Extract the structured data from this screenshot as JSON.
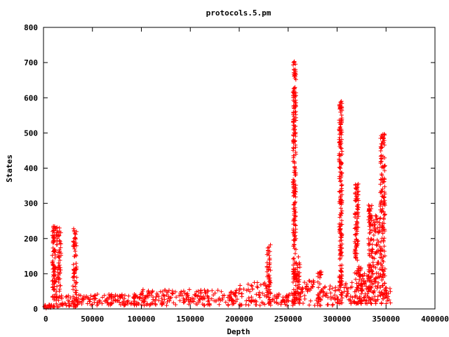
{
  "chart_data": {
    "type": "scatter",
    "title": "protocols.5.pm",
    "xlabel": "Depth",
    "ylabel": "States",
    "xlim": [
      0,
      400000
    ],
    "ylim": [
      0,
      800
    ],
    "xticks": [
      "0",
      "50000",
      "100000",
      "150000",
      "200000",
      "250000",
      "300000",
      "350000",
      "400000"
    ],
    "yticks": [
      "0",
      "100",
      "200",
      "300",
      "400",
      "500",
      "600",
      "700",
      "800"
    ],
    "grid": false,
    "legend": "none",
    "marker": "+",
    "color": "#ff0000",
    "point_groups": [
      {
        "x_range": [
          0,
          9000
        ],
        "y_range": [
          2,
          12
        ]
      },
      {
        "x_range": [
          9000,
          12000
        ],
        "y_range": [
          5,
          235
        ]
      },
      {
        "x_range": [
          12000,
          18000
        ],
        "y_range": [
          5,
          232
        ]
      },
      {
        "x_range": [
          18000,
          30000
        ],
        "y_range": [
          8,
          38
        ]
      },
      {
        "x_range": [
          30000,
          34000
        ],
        "y_range": [
          5,
          228
        ]
      },
      {
        "x_range": [
          34000,
          100000
        ],
        "y_range": [
          10,
          42
        ]
      },
      {
        "x_range": [
          100000,
          104000
        ],
        "y_range": [
          10,
          55
        ]
      },
      {
        "x_range": [
          104000,
          200000
        ],
        "y_range": [
          10,
          55
        ]
      },
      {
        "x_range": [
          200000,
          215000
        ],
        "y_range": [
          10,
          70
        ]
      },
      {
        "x_range": [
          215000,
          228000
        ],
        "y_range": [
          10,
          75
        ]
      },
      {
        "x_range": [
          228000,
          232000
        ],
        "y_range": [
          15,
          182
        ]
      },
      {
        "x_range": [
          232000,
          255000
        ],
        "y_range": [
          10,
          45
        ]
      },
      {
        "x_range": [
          255000,
          258000
        ],
        "y_range": [
          15,
          703
        ]
      },
      {
        "x_range": [
          258000,
          262000
        ],
        "y_range": [
          15,
          148
        ]
      },
      {
        "x_range": [
          262000,
          280000
        ],
        "y_range": [
          10,
          80
        ]
      },
      {
        "x_range": [
          280000,
          284000
        ],
        "y_range": [
          10,
          105
        ]
      },
      {
        "x_range": [
          284000,
          302000
        ],
        "y_range": [
          10,
          65
        ]
      },
      {
        "x_range": [
          302000,
          305000
        ],
        "y_range": [
          15,
          590
        ]
      },
      {
        "x_range": [
          305000,
          318000
        ],
        "y_range": [
          15,
          75
        ]
      },
      {
        "x_range": [
          318000,
          322000
        ],
        "y_range": [
          15,
          355
        ]
      },
      {
        "x_range": [
          322000,
          326000
        ],
        "y_range": [
          15,
          120
        ]
      },
      {
        "x_range": [
          326000,
          332000
        ],
        "y_range": [
          15,
          100
        ]
      },
      {
        "x_range": [
          332000,
          336000
        ],
        "y_range": [
          15,
          295
        ]
      },
      {
        "x_range": [
          336000,
          344000
        ],
        "y_range": [
          15,
          265
        ]
      },
      {
        "x_range": [
          344000,
          349000
        ],
        "y_range": [
          15,
          497
        ]
      },
      {
        "x_range": [
          349000,
          355000
        ],
        "y_range": [
          15,
          60
        ]
      }
    ]
  }
}
